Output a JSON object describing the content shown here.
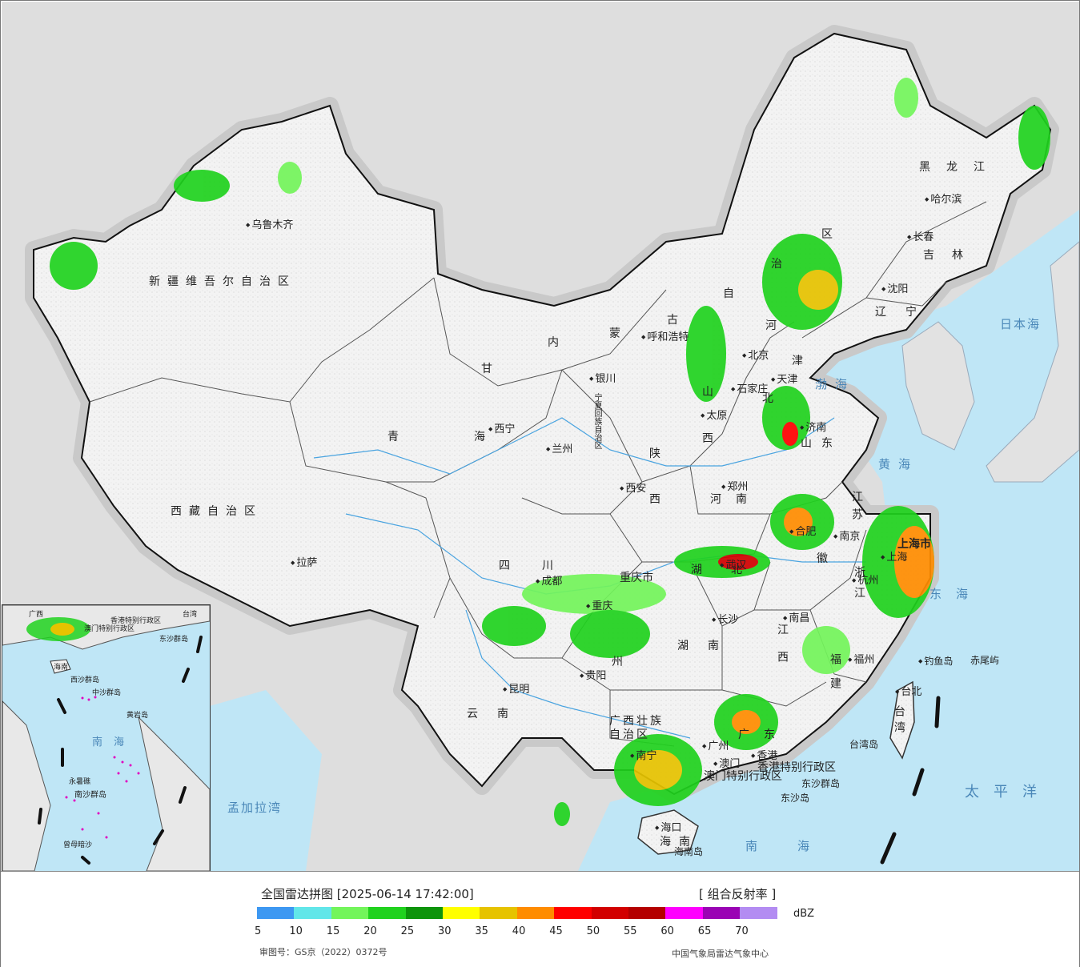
{
  "legend": {
    "title": "全国雷达拼图 [2025-06-14 17:42:00]",
    "product": "[ 组合反射率 ]",
    "unit": "dBZ",
    "approval": "审图号：GS京（2022）0372号",
    "source": "中国气象局雷达气象中心",
    "ticks": [
      "5",
      "10",
      "15",
      "20",
      "25",
      "30",
      "35",
      "40",
      "45",
      "50",
      "55",
      "60",
      "65",
      "70"
    ],
    "colors": [
      "#3d98f2",
      "#62e6e9",
      "#73f55b",
      "#20d21e",
      "#0d940b",
      "#ffff00",
      "#e6c300",
      "#ff8c00",
      "#ff0000",
      "#d20000",
      "#b40000",
      "#ff00ff",
      "#9a03b4",
      "#b38cf2"
    ]
  },
  "map": {
    "provinces": [
      {
        "id": "xinjiang",
        "text": "新疆维吾尔自治区"
      },
      {
        "id": "xizang",
        "text": "西藏自治区"
      },
      {
        "id": "qinghai",
        "text": "青　海"
      },
      {
        "id": "gansu",
        "text": "甘"
      },
      {
        "id": "neimenggu1",
        "text": "内"
      },
      {
        "id": "neimenggu2",
        "text": "蒙"
      },
      {
        "id": "neimenggu3",
        "text": "古"
      },
      {
        "id": "neimenggu4",
        "text": "自"
      },
      {
        "id": "neimenggu5",
        "text": "治"
      },
      {
        "id": "neimenggu6",
        "text": "区"
      },
      {
        "id": "heilongjiang",
        "text": "黑龙江"
      },
      {
        "id": "jilin",
        "text": "吉林"
      },
      {
        "id": "liaoning",
        "text": "辽宁"
      },
      {
        "id": "ningxia",
        "text": "宁夏回族自治区"
      },
      {
        "id": "shaanxi1",
        "text": "陕"
      },
      {
        "id": "shaanxi2",
        "text": "西"
      },
      {
        "id": "shanxi1",
        "text": "山"
      },
      {
        "id": "shanxi2",
        "text": "西"
      },
      {
        "id": "hebei1",
        "text": "河"
      },
      {
        "id": "hebei2",
        "text": "北"
      },
      {
        "id": "shandong",
        "text": "山东"
      },
      {
        "id": "henan",
        "text": "河南"
      },
      {
        "id": "sichuan",
        "text": "四川"
      },
      {
        "id": "chongqing",
        "text": "重庆市"
      },
      {
        "id": "hubei",
        "text": "湖北"
      },
      {
        "id": "hunan",
        "text": "湖南"
      },
      {
        "id": "guizhou",
        "text": "州"
      },
      {
        "id": "yunnan",
        "text": "云南"
      },
      {
        "id": "guangxi",
        "text": "广西壮族自治区"
      },
      {
        "id": "guangdong",
        "text": "广东"
      },
      {
        "id": "jiangxi",
        "text": "江西"
      },
      {
        "id": "fujian",
        "text": "福建"
      },
      {
        "id": "zhejiang",
        "text": "浙江"
      },
      {
        "id": "jiangsu",
        "text": "江苏"
      },
      {
        "id": "anhui",
        "text": "徽"
      },
      {
        "id": "shanghai",
        "text": "上海市"
      },
      {
        "id": "tianjin",
        "text": "津"
      },
      {
        "id": "hainan",
        "text": "海南"
      },
      {
        "id": "taiwan",
        "text": "台湾"
      },
      {
        "id": "hk",
        "text": "香港特别行政区"
      },
      {
        "id": "macao",
        "text": "澳门特别行政区"
      }
    ],
    "cities": [
      {
        "id": "urumqi",
        "text": "乌鲁木齐"
      },
      {
        "id": "lhasa",
        "text": "拉萨"
      },
      {
        "id": "xining",
        "text": "西宁"
      },
      {
        "id": "lanzhou",
        "text": "兰州"
      },
      {
        "id": "yinchuan",
        "text": "银川"
      },
      {
        "id": "hohhot",
        "text": "呼和浩特"
      },
      {
        "id": "beijing",
        "text": "北京"
      },
      {
        "id": "tianjin",
        "text": "天津"
      },
      {
        "id": "shijiazhuang",
        "text": "石家庄"
      },
      {
        "id": "taiyuan",
        "text": "太原"
      },
      {
        "id": "jinan",
        "text": "济南"
      },
      {
        "id": "zhengzhou",
        "text": "郑州"
      },
      {
        "id": "xian",
        "text": "西安"
      },
      {
        "id": "chengdu",
        "text": "成都"
      },
      {
        "id": "chongqingc",
        "text": "重庆"
      },
      {
        "id": "wuhan",
        "text": "武汉"
      },
      {
        "id": "hefei",
        "text": "合肥"
      },
      {
        "id": "nanjing",
        "text": "南京"
      },
      {
        "id": "shanghai",
        "text": "上海"
      },
      {
        "id": "hangzhou",
        "text": "杭州"
      },
      {
        "id": "nanchang",
        "text": "南昌"
      },
      {
        "id": "changsha",
        "text": "长沙"
      },
      {
        "id": "guiyang",
        "text": "贵阳"
      },
      {
        "id": "kunming",
        "text": "昆明"
      },
      {
        "id": "nanning",
        "text": "南宁"
      },
      {
        "id": "guangzhou",
        "text": "广州"
      },
      {
        "id": "fuzhou",
        "text": "福州"
      },
      {
        "id": "taipei",
        "text": "台北"
      },
      {
        "id": "haikou",
        "text": "海口"
      },
      {
        "id": "harbin",
        "text": "哈尔滨"
      },
      {
        "id": "changchun",
        "text": "长春"
      },
      {
        "id": "shenyang",
        "text": "沈阳"
      },
      {
        "id": "hongkong",
        "text": "香港"
      },
      {
        "id": "macau",
        "text": "澳门"
      }
    ],
    "seas": [
      {
        "id": "japan",
        "text": "日本海"
      },
      {
        "id": "bohai",
        "text": "渤海"
      },
      {
        "id": "yellow",
        "text": "黄海"
      },
      {
        "id": "east",
        "text": "东海"
      },
      {
        "id": "south",
        "text": "南海"
      },
      {
        "id": "pacific",
        "text": "太平洋"
      },
      {
        "id": "bengal",
        "text": "孟加拉湾"
      }
    ],
    "islands": [
      {
        "id": "diaoyu",
        "text": "钓鱼岛"
      },
      {
        "id": "chiwei",
        "text": "赤尾屿"
      },
      {
        "id": "taiwan",
        "text": "台湾岛"
      },
      {
        "id": "hainan",
        "text": "海南岛"
      },
      {
        "id": "dongsha",
        "text": "东沙群岛"
      },
      {
        "id": "dongshadao",
        "text": "东沙岛"
      }
    ]
  },
  "inset": {
    "labels": [
      "广西",
      "澳门特别行政区",
      "香港特别行政区",
      "台湾",
      "东沙群岛",
      "海南",
      "西沙群岛",
      "中沙群岛",
      "黄岩岛",
      "南海",
      "永暑礁",
      "南沙群岛",
      "曾母暗沙"
    ]
  }
}
